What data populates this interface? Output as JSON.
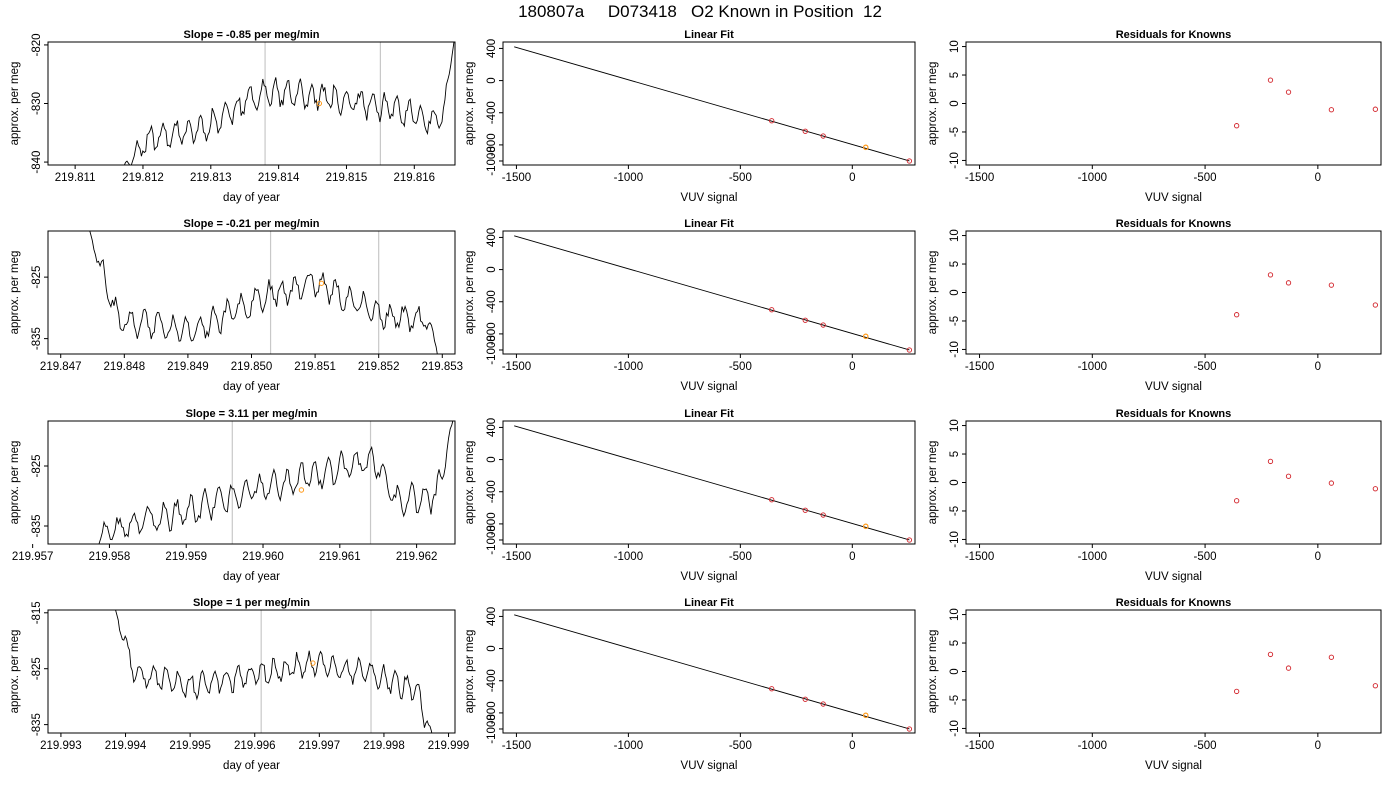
{
  "figure": {
    "title": "180807a     D073418   O2 Known in Position  12"
  },
  "chart_data": [
    {
      "type": "line",
      "panel": "timeseries",
      "title": "Slope =  -0.85  per meg/min",
      "xlabel": "day of year",
      "ylabel": "approx. per meg",
      "xlim": [
        219.8106,
        219.8166
      ],
      "ylim": [
        -840.5,
        -819.5
      ],
      "xticks": [
        "219.811",
        "219.812",
        "219.813",
        "219.814",
        "219.815",
        "219.816"
      ],
      "yticks": [
        "-840",
        "-830",
        "-820"
      ],
      "vlines": [
        219.8138,
        219.8155
      ],
      "orange_point": [
        219.8146,
        -830
      ],
      "trace": {
        "x0": 219.8117,
        "x1": 219.8166,
        "start": -841,
        "end": -818,
        "segments": [
          [
            0.0,
            -841
          ],
          [
            0.08,
            -836
          ],
          [
            0.25,
            -834
          ],
          [
            0.42,
            -828
          ],
          [
            0.62,
            -829
          ],
          [
            0.82,
            -831
          ],
          [
            0.94,
            -833
          ],
          [
            0.97,
            -830
          ],
          [
            1.0,
            -818
          ]
        ],
        "amp": 2.6,
        "seed": 11
      }
    },
    {
      "type": "scatter",
      "panel": "linear-fit",
      "title": "Linear Fit",
      "xlabel": "VUV signal",
      "ylabel": "approx. per meg",
      "xlim": [
        -1560,
        280
      ],
      "ylim": [
        -1050,
        480
      ],
      "xticks": [
        "-1500",
        "-1000",
        "-500",
        "0"
      ],
      "yticks": [
        "-1000",
        "-800",
        "-400",
        "0",
        "400"
      ],
      "fit_line": [
        [
          -1510,
          420
        ],
        [
          255,
          -1000
        ]
      ],
      "points": [
        [
          -360,
          -500
        ],
        [
          -210,
          -630
        ],
        [
          -130,
          -690
        ],
        [
          255,
          -1000
        ]
      ],
      "orange_points": [
        [
          60,
          -830
        ]
      ]
    },
    {
      "type": "scatter",
      "panel": "residuals",
      "title": "Residuals for Knowns",
      "xlabel": "VUV signal",
      "ylabel": "approx. per meg",
      "xlim": [
        -1560,
        280
      ],
      "ylim": [
        -10.8,
        10.8
      ],
      "xticks": [
        "-1500",
        "-1000",
        "-500",
        "0"
      ],
      "yticks": [
        "-10",
        "-5",
        "0",
        "5",
        "10"
      ],
      "points": [
        [
          -360,
          -3.9
        ],
        [
          -210,
          4.1
        ],
        [
          -130,
          2.0
        ],
        [
          60,
          -1.1
        ],
        [
          255,
          -1.0
        ]
      ]
    },
    {
      "type": "line",
      "panel": "timeseries",
      "title": "Slope =  -0.21  per meg/min",
      "xlabel": "day of year",
      "ylabel": "approx. per meg",
      "xlim": [
        219.8468,
        219.8532
      ],
      "ylim": [
        -837.5,
        -817.5
      ],
      "xticks": [
        "219.847",
        "219.848",
        "219.849",
        "219.850",
        "219.851",
        "219.852",
        "219.853"
      ],
      "yticks": [
        "-835",
        "-825"
      ],
      "vlines": [
        219.8503,
        219.852
      ],
      "orange_point": [
        219.8511,
        -826
      ],
      "trace": {
        "x0": 219.8474,
        "x1": 219.853,
        "start": -816,
        "end": -840,
        "segments": [
          [
            0.0,
            -816
          ],
          [
            0.09,
            -832
          ],
          [
            0.3,
            -834
          ],
          [
            0.5,
            -828
          ],
          [
            0.65,
            -826
          ],
          [
            0.82,
            -831
          ],
          [
            0.96,
            -832
          ],
          [
            1.0,
            -840
          ]
        ],
        "amp": 2.4,
        "seed": 23
      }
    },
    {
      "type": "scatter",
      "panel": "linear-fit",
      "title": "Linear Fit",
      "xlabel": "VUV signal",
      "ylabel": "approx. per meg",
      "xlim": [
        -1560,
        280
      ],
      "ylim": [
        -1050,
        480
      ],
      "xticks": [
        "-1500",
        "-1000",
        "-500",
        "0"
      ],
      "yticks": [
        "-1000",
        "-800",
        "-400",
        "0",
        "400"
      ],
      "fit_line": [
        [
          -1510,
          420
        ],
        [
          255,
          -1000
        ]
      ],
      "points": [
        [
          -360,
          -500
        ],
        [
          -210,
          -630
        ],
        [
          -130,
          -690
        ],
        [
          255,
          -1000
        ]
      ],
      "orange_points": [
        [
          60,
          -830
        ]
      ]
    },
    {
      "type": "scatter",
      "panel": "residuals",
      "title": "Residuals for Knowns",
      "xlabel": "VUV signal",
      "ylabel": "approx. per meg",
      "xlim": [
        -1560,
        280
      ],
      "ylim": [
        -10.8,
        10.8
      ],
      "xticks": [
        "-1500",
        "-1000",
        "-500",
        "0"
      ],
      "yticks": [
        "-10",
        "-5",
        "0",
        "5",
        "10"
      ],
      "points": [
        [
          -360,
          -3.9
        ],
        [
          -210,
          3.1
        ],
        [
          -130,
          1.7
        ],
        [
          60,
          1.3
        ],
        [
          255,
          -2.2
        ]
      ]
    },
    {
      "type": "line",
      "panel": "timeseries",
      "title": "Slope =  3.11  per meg/min",
      "xlabel": "day of year",
      "ylabel": "approx. per meg",
      "xlim": [
        219.9572,
        219.9625
      ],
      "ylim": [
        -838.0,
        -817.5
      ],
      "xticks": [
        "219.957",
        "219.958",
        "219.959",
        "219.960",
        "219.961",
        "219.962"
      ],
      "yticks": [
        "-835",
        "-825"
      ],
      "vlines": [
        219.9596,
        219.9614
      ],
      "orange_point": [
        219.9605,
        -829
      ],
      "trace": {
        "x0": 219.9577,
        "x1": 219.9625,
        "start": -841,
        "end": -816,
        "segments": [
          [
            0.0,
            -841
          ],
          [
            0.06,
            -836
          ],
          [
            0.25,
            -833
          ],
          [
            0.45,
            -829
          ],
          [
            0.65,
            -826
          ],
          [
            0.78,
            -824
          ],
          [
            0.84,
            -831
          ],
          [
            0.95,
            -830
          ],
          [
            1.0,
            -816
          ]
        ],
        "amp": 2.7,
        "seed": 37
      }
    },
    {
      "type": "scatter",
      "panel": "linear-fit",
      "title": "Linear Fit",
      "xlabel": "VUV signal",
      "ylabel": "approx. per meg",
      "xlim": [
        -1560,
        280
      ],
      "ylim": [
        -1050,
        480
      ],
      "xticks": [
        "-1500",
        "-1000",
        "-500",
        "0"
      ],
      "yticks": [
        "-1000",
        "-800",
        "-400",
        "0",
        "400"
      ],
      "fit_line": [
        [
          -1510,
          420
        ],
        [
          255,
          -1000
        ]
      ],
      "points": [
        [
          -360,
          -500
        ],
        [
          -210,
          -630
        ],
        [
          -130,
          -690
        ],
        [
          255,
          -1000
        ]
      ],
      "orange_points": [
        [
          60,
          -830
        ]
      ]
    },
    {
      "type": "scatter",
      "panel": "residuals",
      "title": "Residuals for Knowns",
      "xlabel": "VUV signal",
      "ylabel": "approx. per meg",
      "xlim": [
        -1560,
        280
      ],
      "ylim": [
        -10.8,
        10.8
      ],
      "xticks": [
        "-1500",
        "-1000",
        "-500",
        "0"
      ],
      "yticks": [
        "-10",
        "-5",
        "0",
        "5",
        "10"
      ],
      "points": [
        [
          -360,
          -3.2
        ],
        [
          -210,
          3.7
        ],
        [
          -130,
          1.1
        ],
        [
          60,
          -0.1
        ],
        [
          255,
          -1.1
        ]
      ]
    },
    {
      "type": "line",
      "panel": "timeseries",
      "title": "Slope =  1  per meg/min",
      "xlabel": "day of year",
      "ylabel": "approx. per meg",
      "xlim": [
        219.9928,
        219.9991
      ],
      "ylim": [
        -836.5,
        -814.5
      ],
      "xticks": [
        "219.993",
        "219.994",
        "219.995",
        "219.996",
        "219.997",
        "219.998",
        "219.999"
      ],
      "yticks": [
        "-835",
        "-825",
        "-815"
      ],
      "vlines": [
        219.9961,
        219.9978
      ],
      "orange_point": [
        219.9969,
        -824
      ],
      "trace": {
        "x0": 219.9938,
        "x1": 219.9988,
        "start": -813,
        "end": -839,
        "segments": [
          [
            0.0,
            -813
          ],
          [
            0.07,
            -826
          ],
          [
            0.25,
            -828
          ],
          [
            0.45,
            -826
          ],
          [
            0.62,
            -824
          ],
          [
            0.8,
            -826
          ],
          [
            0.94,
            -829
          ],
          [
            1.0,
            -839
          ]
        ],
        "amp": 2.5,
        "seed": 53
      }
    },
    {
      "type": "scatter",
      "panel": "linear-fit",
      "title": "Linear Fit",
      "xlabel": "VUV signal",
      "ylabel": "approx. per meg",
      "xlim": [
        -1560,
        280
      ],
      "ylim": [
        -1050,
        480
      ],
      "xticks": [
        "-1500",
        "-1000",
        "-500",
        "0"
      ],
      "yticks": [
        "-1000",
        "-800",
        "-400",
        "0",
        "400"
      ],
      "fit_line": [
        [
          -1510,
          420
        ],
        [
          255,
          -1000
        ]
      ],
      "points": [
        [
          -360,
          -500
        ],
        [
          -210,
          -630
        ],
        [
          -130,
          -690
        ],
        [
          255,
          -1000
        ]
      ],
      "orange_points": [
        [
          60,
          -830
        ]
      ]
    },
    {
      "type": "scatter",
      "panel": "residuals",
      "title": "Residuals for Knowns",
      "xlabel": "VUV signal",
      "ylabel": "approx. per meg",
      "xlim": [
        -1560,
        280
      ],
      "ylim": [
        -10.8,
        10.8
      ],
      "xticks": [
        "-1500",
        "-1000",
        "-500",
        "0"
      ],
      "yticks": [
        "-10",
        "-5",
        "0",
        "5",
        "10"
      ],
      "points": [
        [
          -360,
          -3.5
        ],
        [
          -210,
          3.0
        ],
        [
          -130,
          0.6
        ],
        [
          60,
          2.5
        ],
        [
          255,
          -2.5
        ]
      ]
    }
  ],
  "colors": {
    "axis": "#000000",
    "trace": "#000000",
    "vline": "#c8c8c8",
    "marker": "#d2232a",
    "highlight": "#ff9a1a"
  }
}
